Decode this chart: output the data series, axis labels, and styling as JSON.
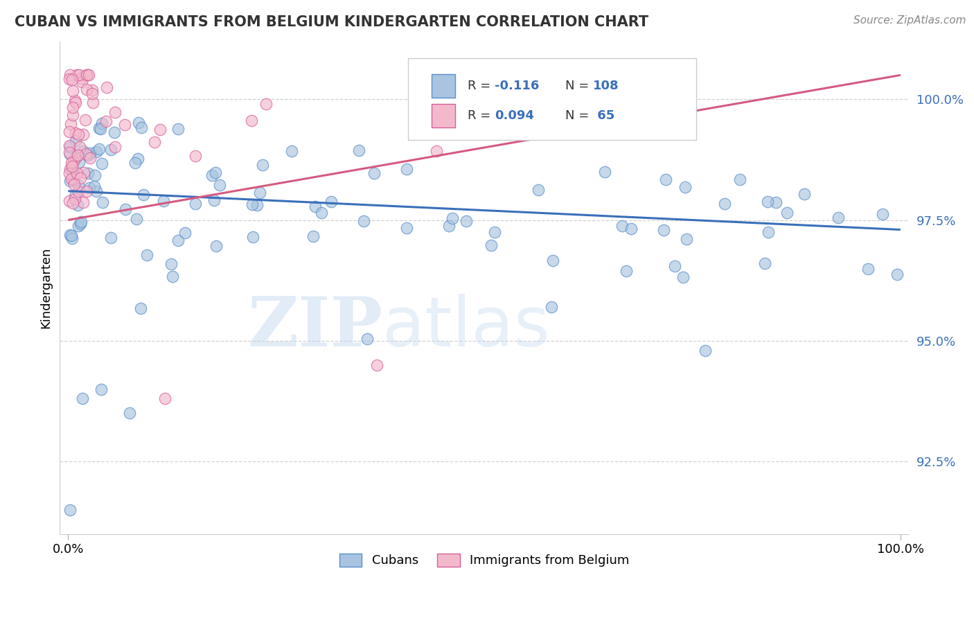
{
  "title": "CUBAN VS IMMIGRANTS FROM BELGIUM KINDERGARTEN CORRELATION CHART",
  "source": "Source: ZipAtlas.com",
  "ylabel": "Kindergarten",
  "cubans_color": "#a8c4e0",
  "cubans_edge": "#5b8fc9",
  "belgians_color": "#f4b8cc",
  "belgians_edge": "#d4609a",
  "trend_blue": "#3a6fba",
  "trend_pink": "#d45a80",
  "xlim": [
    -1,
    101
  ],
  "ylim": [
    91.0,
    101.2
  ],
  "yticks": [
    92.5,
    95.0,
    97.5,
    100.0
  ],
  "watermark_zip": "ZIP",
  "watermark_atlas": "atlas"
}
